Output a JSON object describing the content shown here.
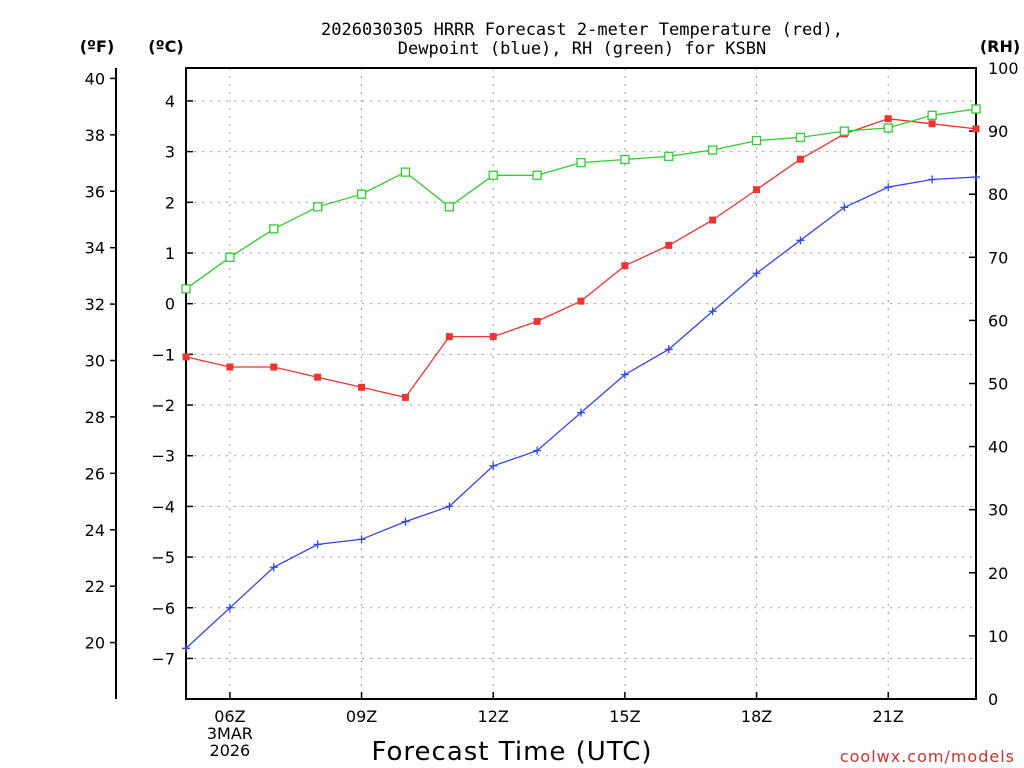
{
  "chart_data": {
    "type": "line",
    "title_lines": [
      "2026030305 HRRR Forecast 2-meter Temperature (red),",
      "Dewpoint (blue), RH (green) for KSBN"
    ],
    "xlabel": "Forecast Time (UTC)",
    "credit": "coolwx.com/models",
    "credit_color": "#cc3333",
    "unit_labels": {
      "fahrenheit": "(ºF)",
      "celsius": "(ºC)",
      "rh": "(RH)"
    },
    "x": [
      5,
      6,
      7,
      8,
      9,
      10,
      11,
      12,
      13,
      14,
      15,
      16,
      17,
      18,
      19,
      20,
      21,
      22,
      23
    ],
    "xlim": [
      5,
      23
    ],
    "x_ticks": [
      {
        "x": 6,
        "lines": [
          "06Z",
          "3MAR",
          "2026"
        ]
      },
      {
        "x": 9,
        "lines": [
          "09Z"
        ]
      },
      {
        "x": 12,
        "lines": [
          "12Z"
        ]
      },
      {
        "x": 15,
        "lines": [
          "15Z"
        ]
      },
      {
        "x": 18,
        "lines": [
          "18Z"
        ]
      },
      {
        "x": 21,
        "lines": [
          "21Z"
        ]
      }
    ],
    "celsius_axis": {
      "ylim": [
        -7.8,
        4.65
      ],
      "ticks": [
        4,
        3,
        2,
        1,
        0,
        -1,
        -2,
        -3,
        -4,
        -5,
        -6,
        -7
      ]
    },
    "fahrenheit_axis": {
      "ylim": [
        18,
        40.37
      ],
      "ticks": [
        40,
        38,
        36,
        34,
        32,
        30,
        28,
        26,
        24,
        22,
        20
      ]
    },
    "rh_axis": {
      "ylim": [
        0,
        100
      ],
      "ticks": [
        100,
        90,
        80,
        70,
        60,
        50,
        40,
        30,
        20,
        10,
        0
      ]
    },
    "series": [
      {
        "name": "Temperature",
        "units": "°C",
        "axis": "celsius",
        "color": "#ee3333",
        "marker": "filled-square",
        "values": [
          -1.05,
          -1.25,
          -1.25,
          -1.45,
          -1.65,
          -1.85,
          -0.65,
          -0.65,
          -0.35,
          0.05,
          0.75,
          1.15,
          1.65,
          2.25,
          2.85,
          3.35,
          3.65,
          3.55,
          3.45
        ]
      },
      {
        "name": "Dewpoint",
        "units": "°C",
        "axis": "celsius",
        "color": "#3344ee",
        "marker": "plus",
        "values": [
          -6.8,
          -6.0,
          -5.2,
          -4.75,
          -4.65,
          -4.3,
          -4.0,
          -3.2,
          -2.9,
          -2.15,
          -1.4,
          -0.9,
          -0.15,
          0.6,
          1.25,
          1.9,
          2.3,
          2.45,
          2.5
        ]
      },
      {
        "name": "Relative Humidity",
        "units": "%",
        "axis": "rh",
        "color": "#33cc33",
        "marker": "open-square",
        "values": [
          65,
          70,
          74.5,
          78,
          80,
          83.5,
          78,
          83,
          83,
          85,
          85.5,
          86,
          87,
          88.5,
          89,
          90,
          90.5,
          92.5,
          93.5
        ]
      }
    ],
    "grid": true
  }
}
